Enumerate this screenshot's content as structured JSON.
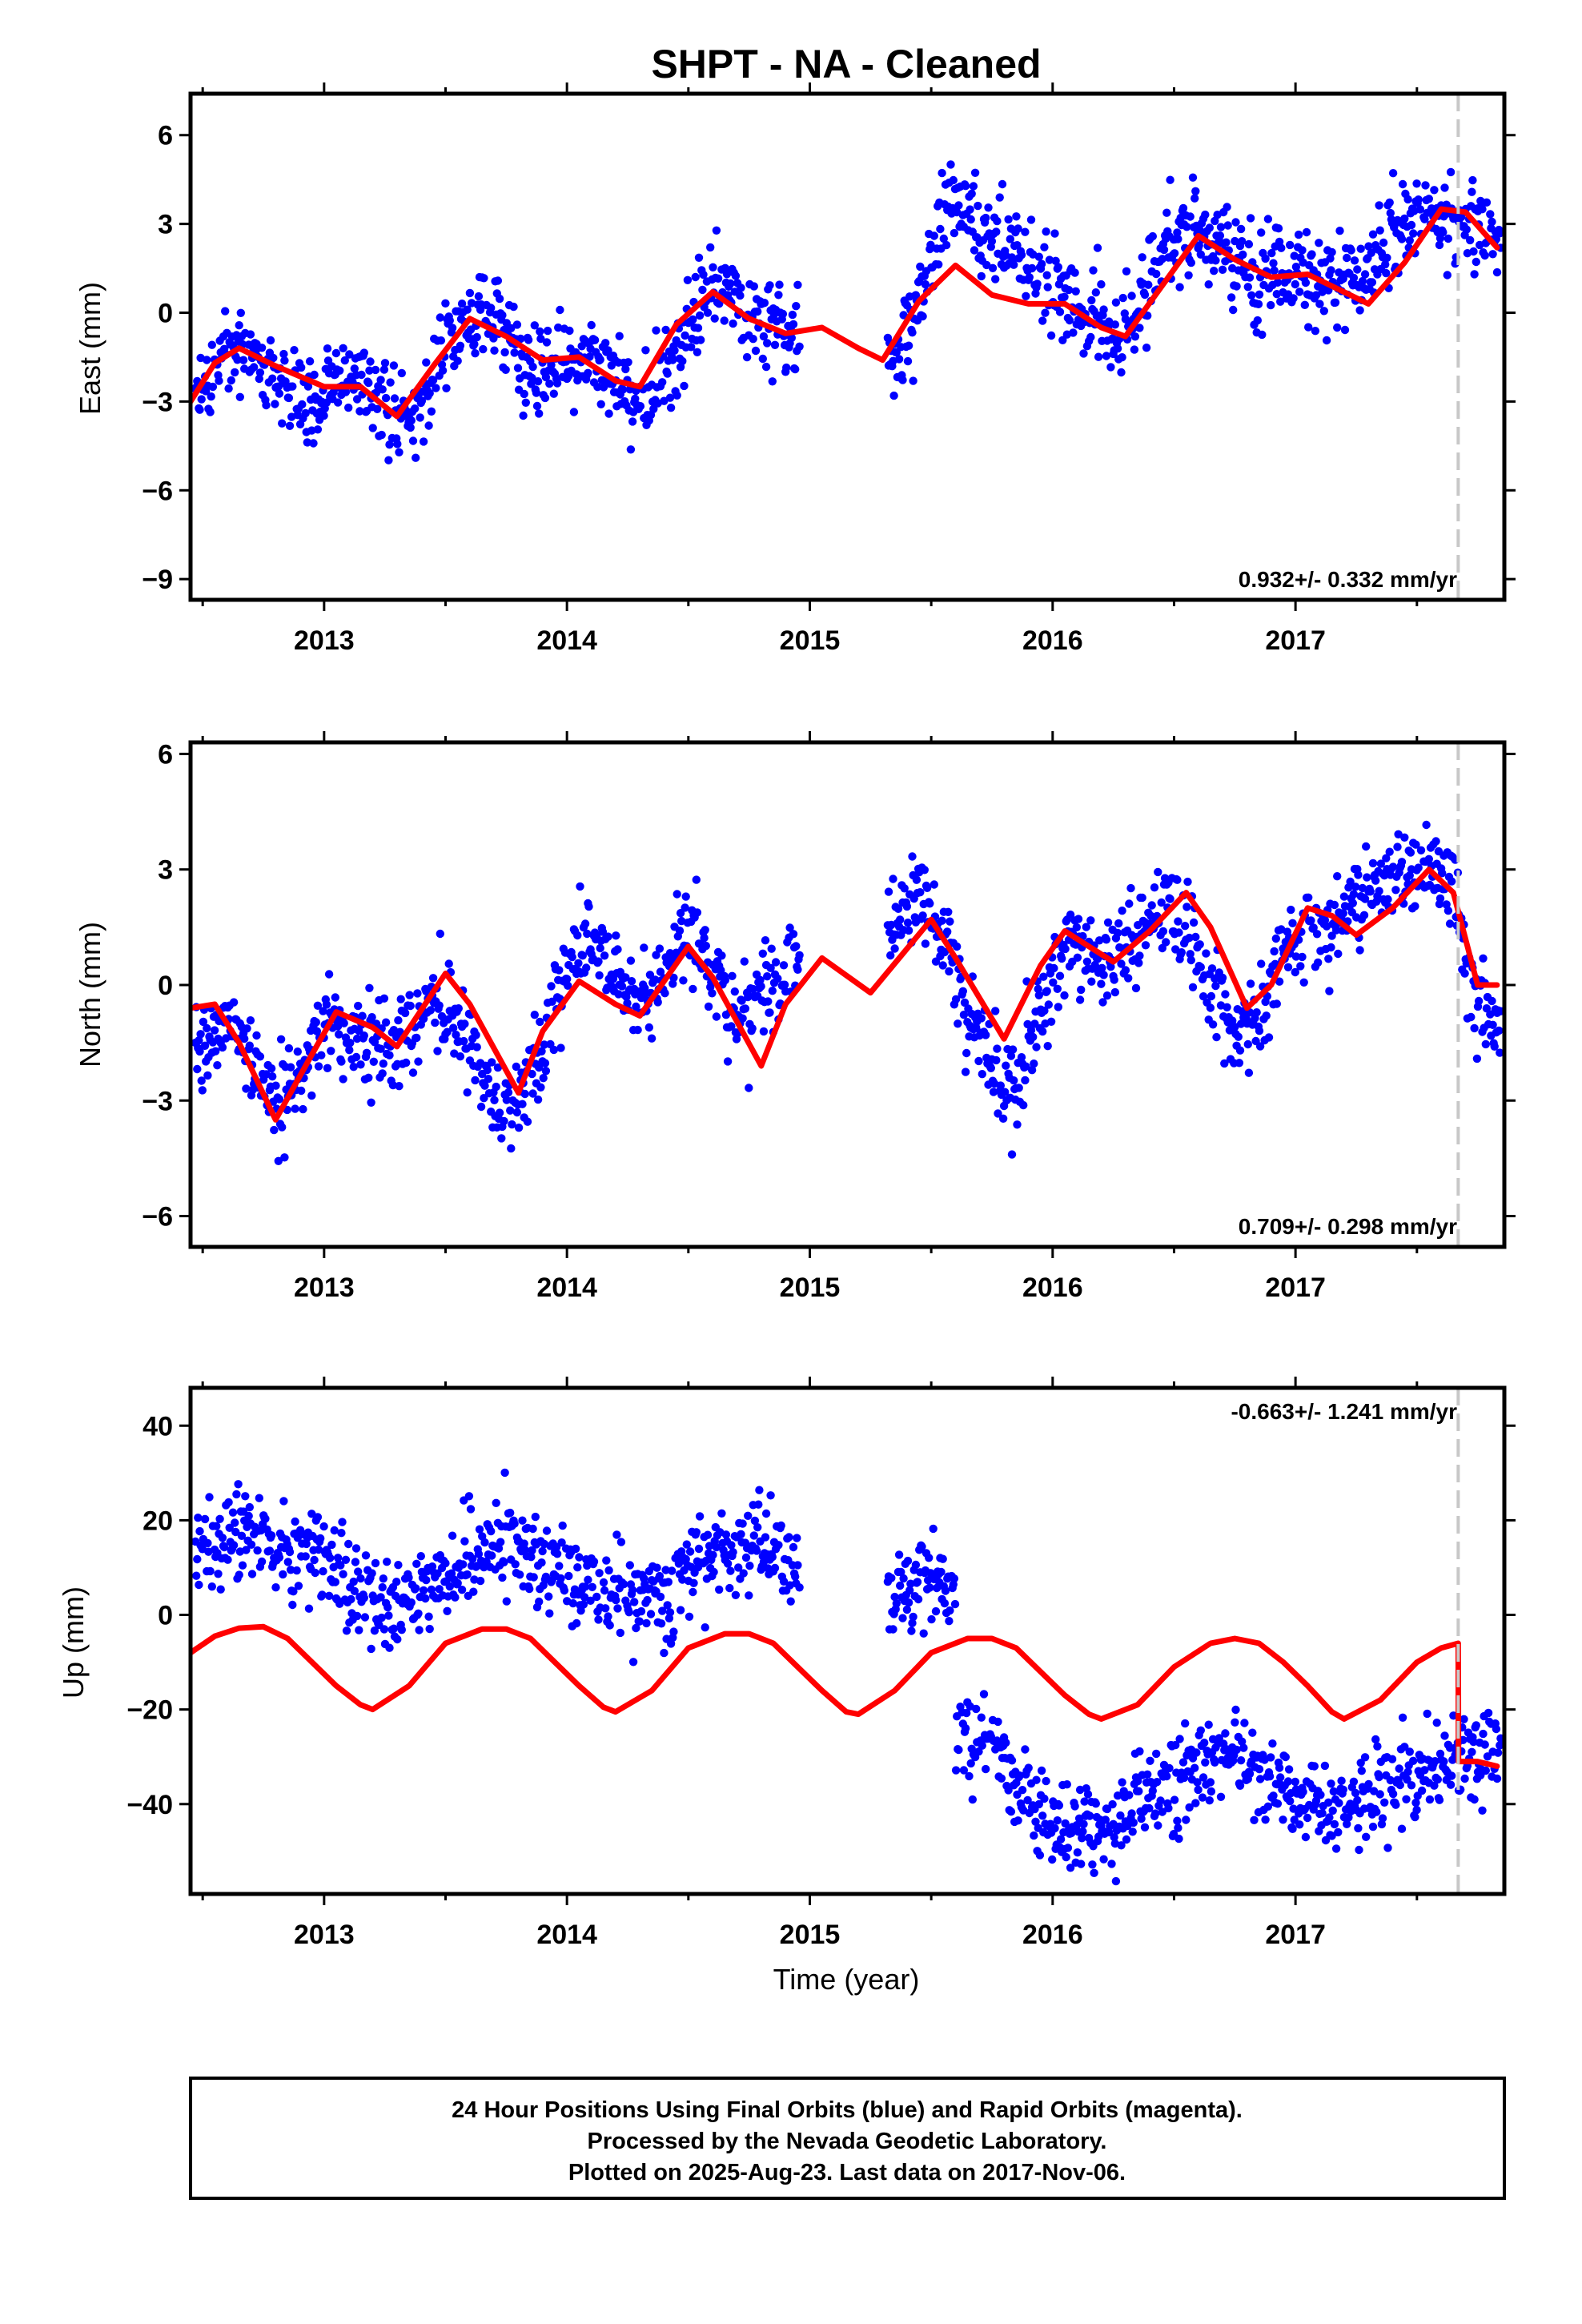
{
  "title": "SHPT  - NA - Cleaned",
  "chart_data": [
    {
      "type": "scatter",
      "ylabel": "East (mm)",
      "xlabel": "",
      "xlim": [
        2012.45,
        2017.86
      ],
      "ylim": [
        -9.7,
        7.4
      ],
      "x_ticks": [
        2013,
        2014,
        2015,
        2016,
        2017
      ],
      "x_tick_labels": [
        "2013",
        "2014",
        "2015",
        "2016",
        "2017"
      ],
      "y_ticks": [
        -9,
        -6,
        -3,
        0,
        3,
        6
      ],
      "y_tick_labels": [
        "−9",
        "−6",
        "−3",
        "0",
        "3",
        "6"
      ],
      "rate_label": "0.932+/- 0.332 mm/yr",
      "dashed_line_x": 2017.67,
      "series": [
        {
          "style": "points",
          "color": "#0000ff",
          "x": [
            2012.5,
            2012.6,
            2012.7,
            2012.8,
            2012.9,
            2013.0,
            2013.1,
            2013.2,
            2013.3,
            2013.4,
            2013.5,
            2013.6,
            2013.7,
            2013.8,
            2013.9,
            2014.0,
            2014.1,
            2014.2,
            2014.3,
            2014.4,
            2014.5,
            2014.6,
            2014.7,
            2014.8,
            2014.9,
            2015.35,
            2015.45,
            2015.55,
            2015.65,
            2015.75,
            2015.85,
            2015.95,
            2016.05,
            2016.15,
            2016.25,
            2016.35,
            2016.45,
            2016.55,
            2016.65,
            2016.75,
            2016.85,
            2016.95,
            2017.05,
            2017.15,
            2017.25,
            2017.35,
            2017.45,
            2017.55,
            2017.65,
            2017.75,
            2017.82
          ],
          "y": [
            -2.4,
            -1.5,
            -1.3,
            -2.5,
            -3.5,
            -2.7,
            -2.2,
            -2.6,
            -3.8,
            -3.2,
            -1.2,
            -0.2,
            -0.5,
            -1.3,
            -2.0,
            -1.6,
            -1.4,
            -2.2,
            -3.5,
            -2.1,
            -0.5,
            0.8,
            0.4,
            -0.3,
            -0.9,
            -1.8,
            0.6,
            3.2,
            3.5,
            2.4,
            2.0,
            1.3,
            0.4,
            -0.2,
            -0.6,
            0.2,
            2.2,
            2.8,
            2.5,
            1.6,
            1.2,
            1.5,
            1.3,
            0.8,
            1.2,
            2.0,
            3.2,
            3.5,
            3.0,
            2.7,
            2.6
          ]
        },
        {
          "style": "line",
          "color": "#ff0000",
          "x": [
            2012.45,
            2012.55,
            2012.65,
            2012.8,
            2013.0,
            2013.15,
            2013.3,
            2013.45,
            2013.6,
            2013.75,
            2013.9,
            2014.05,
            2014.2,
            2014.3,
            2014.45,
            2014.6,
            2014.75,
            2014.9,
            2015.05,
            2015.2,
            2015.3,
            2015.45,
            2015.6,
            2015.75,
            2015.9,
            2016.05,
            2016.2,
            2016.3,
            2016.45,
            2016.6,
            2016.75,
            2016.9,
            2017.05,
            2017.2,
            2017.3,
            2017.45,
            2017.6,
            2017.7,
            2017.83
          ],
          "y": [
            -3.0,
            -1.7,
            -1.2,
            -1.8,
            -2.5,
            -2.5,
            -3.5,
            -1.8,
            -0.2,
            -0.8,
            -1.6,
            -1.5,
            -2.3,
            -2.5,
            -0.4,
            0.7,
            -0.2,
            -0.7,
            -0.5,
            -1.2,
            -1.6,
            0.4,
            1.6,
            0.6,
            0.3,
            0.3,
            -0.5,
            -0.8,
            0.9,
            2.6,
            1.8,
            1.2,
            1.3,
            0.7,
            0.3,
            1.7,
            3.5,
            3.4,
            2.2
          ]
        }
      ]
    },
    {
      "type": "scatter",
      "ylabel": "North (mm)",
      "xlabel": "",
      "xlim": [
        2012.45,
        2017.86
      ],
      "ylim": [
        -6.8,
        6.3
      ],
      "x_ticks": [
        2013,
        2014,
        2015,
        2016,
        2017
      ],
      "x_tick_labels": [
        "2013",
        "2014",
        "2015",
        "2016",
        "2017"
      ],
      "y_ticks": [
        -6,
        -3,
        0,
        3,
        6
      ],
      "y_tick_labels": [
        "−6",
        "−3",
        "0",
        "3",
        "6"
      ],
      "rate_label": "0.709+/- 0.298 mm/yr",
      "dashed_line_x": 2017.67,
      "series": [
        {
          "style": "points",
          "color": "#0000ff",
          "x": [
            2012.5,
            2012.6,
            2012.7,
            2012.8,
            2012.9,
            2013.0,
            2013.1,
            2013.2,
            2013.3,
            2013.4,
            2013.5,
            2013.6,
            2013.7,
            2013.8,
            2013.9,
            2014.0,
            2014.1,
            2014.2,
            2014.3,
            2014.4,
            2014.5,
            2014.6,
            2014.7,
            2014.8,
            2014.9,
            2015.35,
            2015.45,
            2015.55,
            2015.65,
            2015.75,
            2015.85,
            2015.95,
            2016.05,
            2016.15,
            2016.25,
            2016.35,
            2016.45,
            2016.55,
            2016.65,
            2016.75,
            2016.85,
            2016.95,
            2017.05,
            2017.15,
            2017.25,
            2017.35,
            2017.45,
            2017.55,
            2017.65,
            2017.75,
            2017.82
          ],
          "y": [
            -1.5,
            -0.8,
            -1.8,
            -3.0,
            -2.5,
            -1.0,
            -1.2,
            -1.5,
            -1.3,
            -0.6,
            -0.5,
            -1.5,
            -3.0,
            -3.2,
            -1.5,
            0.2,
            1.2,
            0.2,
            -0.6,
            0.3,
            1.5,
            0.5,
            -0.8,
            -0.3,
            0.5,
            1.5,
            2.5,
            1.2,
            -0.8,
            -2.0,
            -2.8,
            -0.6,
            0.8,
            0.6,
            0.6,
            1.3,
            2.0,
            1.5,
            0.2,
            -1.2,
            -0.8,
            0.8,
            1.5,
            1.5,
            2.0,
            2.5,
            3.0,
            3.2,
            2.5,
            -0.5,
            -1.0
          ]
        },
        {
          "style": "line",
          "color": "#ff0000",
          "x": [
            2012.45,
            2012.55,
            2012.65,
            2012.8,
            2012.95,
            2013.05,
            2013.2,
            2013.3,
            2013.5,
            2013.6,
            2013.8,
            2013.9,
            2014.05,
            2014.2,
            2014.3,
            2014.5,
            2014.6,
            2014.8,
            2014.9,
            2015.05,
            2015.25,
            2015.5,
            2015.6,
            2015.8,
            2015.95,
            2016.05,
            2016.15,
            2016.25,
            2016.4,
            2016.55,
            2016.65,
            2016.8,
            2016.9,
            2017.05,
            2017.15,
            2017.25,
            2017.4,
            2017.55,
            2017.65,
            2017.75,
            2017.83
          ],
          "y": [
            -0.6,
            -0.5,
            -1.5,
            -3.5,
            -1.8,
            -0.7,
            -1.1,
            -1.6,
            0.3,
            -0.5,
            -2.8,
            -1.2,
            0.1,
            -0.5,
            -0.8,
            1.0,
            0.2,
            -2.1,
            -0.5,
            0.7,
            -0.2,
            1.7,
            0.7,
            -1.4,
            0.5,
            1.4,
            1.0,
            0.6,
            1.4,
            2.4,
            1.5,
            -0.6,
            0.0,
            2.0,
            1.8,
            1.3,
            2.0,
            3.0,
            2.4,
            0.0,
            0.0
          ]
        }
      ]
    },
    {
      "type": "scatter",
      "ylabel": "Up (mm)",
      "xlabel": "Time (year)",
      "xlim": [
        2012.45,
        2017.86
      ],
      "ylim": [
        -59,
        48
      ],
      "x_ticks": [
        2013,
        2014,
        2015,
        2016,
        2017
      ],
      "x_tick_labels": [
        "2013",
        "2014",
        "2015",
        "2016",
        "2017"
      ],
      "y_ticks": [
        -40,
        -20,
        0,
        20,
        40
      ],
      "y_tick_labels": [
        "−40",
        "−20",
        "0",
        "20",
        "40"
      ],
      "rate_label": "-0.663+/- 1.241 mm/yr",
      "dashed_line_x": 2017.67,
      "series": [
        {
          "style": "points",
          "color": "#0000ff",
          "x": [
            2012.5,
            2012.6,
            2012.7,
            2012.8,
            2012.9,
            2013.0,
            2013.1,
            2013.2,
            2013.3,
            2013.4,
            2013.5,
            2013.6,
            2013.7,
            2013.8,
            2013.9,
            2014.0,
            2014.1,
            2014.2,
            2014.3,
            2014.4,
            2014.5,
            2014.6,
            2014.7,
            2014.8,
            2014.9,
            2015.35,
            2015.45,
            2015.55,
            2015.65,
            2015.75,
            2015.85,
            2015.95,
            2016.05,
            2016.15,
            2016.25,
            2016.35,
            2016.45,
            2016.55,
            2016.65,
            2016.75,
            2016.85,
            2016.95,
            2017.05,
            2017.15,
            2017.25,
            2017.35,
            2017.45,
            2017.55,
            2017.65,
            2017.75,
            2017.82
          ],
          "y": [
            14,
            16,
            17,
            15,
            13,
            12,
            6,
            3,
            2,
            4,
            8,
            12,
            15,
            16,
            10,
            8,
            7,
            4,
            3,
            4,
            8,
            12,
            15,
            16,
            11,
            7,
            3,
            -25,
            -28,
            -25,
            -38,
            -42,
            -45,
            -47,
            -45,
            -40,
            -37,
            -33,
            -30,
            -30,
            -33,
            -37,
            -40,
            -42,
            -40,
            -37,
            -35,
            -33,
            -30,
            -28,
            -28
          ]
        },
        {
          "style": "line",
          "color": "#ff0000",
          "x": [
            2012.45,
            2012.55,
            2012.65,
            2012.75,
            2012.85,
            2012.95,
            2013.05,
            2013.15,
            2013.2,
            2013.35,
            2013.5,
            2013.65,
            2013.75,
            2013.85,
            2013.95,
            2014.05,
            2014.15,
            2014.2,
            2014.35,
            2014.5,
            2014.65,
            2014.75,
            2014.85,
            2014.95,
            2015.05,
            2015.15,
            2015.2,
            2015.35,
            2015.5,
            2015.65,
            2015.75,
            2015.85,
            2015.95,
            2016.05,
            2016.15,
            2016.2,
            2016.35,
            2016.5,
            2016.65,
            2016.75,
            2016.85,
            2016.95,
            2017.05,
            2017.15,
            2017.2,
            2017.35,
            2017.5,
            2017.6,
            2017.67,
            2017.671,
            2017.75,
            2017.83
          ],
          "y": [
            -8,
            -4.5,
            -2.8,
            -2.5,
            -5,
            -10,
            -15,
            -19,
            -20,
            -15,
            -6,
            -3,
            -3,
            -5,
            -10,
            -15,
            -19.5,
            -20.5,
            -16,
            -7,
            -4,
            -4,
            -6,
            -11,
            -16,
            -20.5,
            -21,
            -16,
            -8,
            -5,
            -5,
            -7,
            -12,
            -17,
            -21,
            -22,
            -19,
            -11,
            -6,
            -5,
            -6,
            -10,
            -15,
            -20.5,
            -22,
            -18,
            -10,
            -7,
            -6,
            -31,
            -31,
            -32
          ]
        }
      ]
    }
  ],
  "caption": {
    "line1": "24 Hour Positions Using Final Orbits (blue) and Rapid Orbits (magenta).",
    "line2": "Processed by the Nevada Geodetic Laboratory.",
    "line3": "Plotted on 2025-Aug-23. Last data on 2017-Nov-06."
  }
}
